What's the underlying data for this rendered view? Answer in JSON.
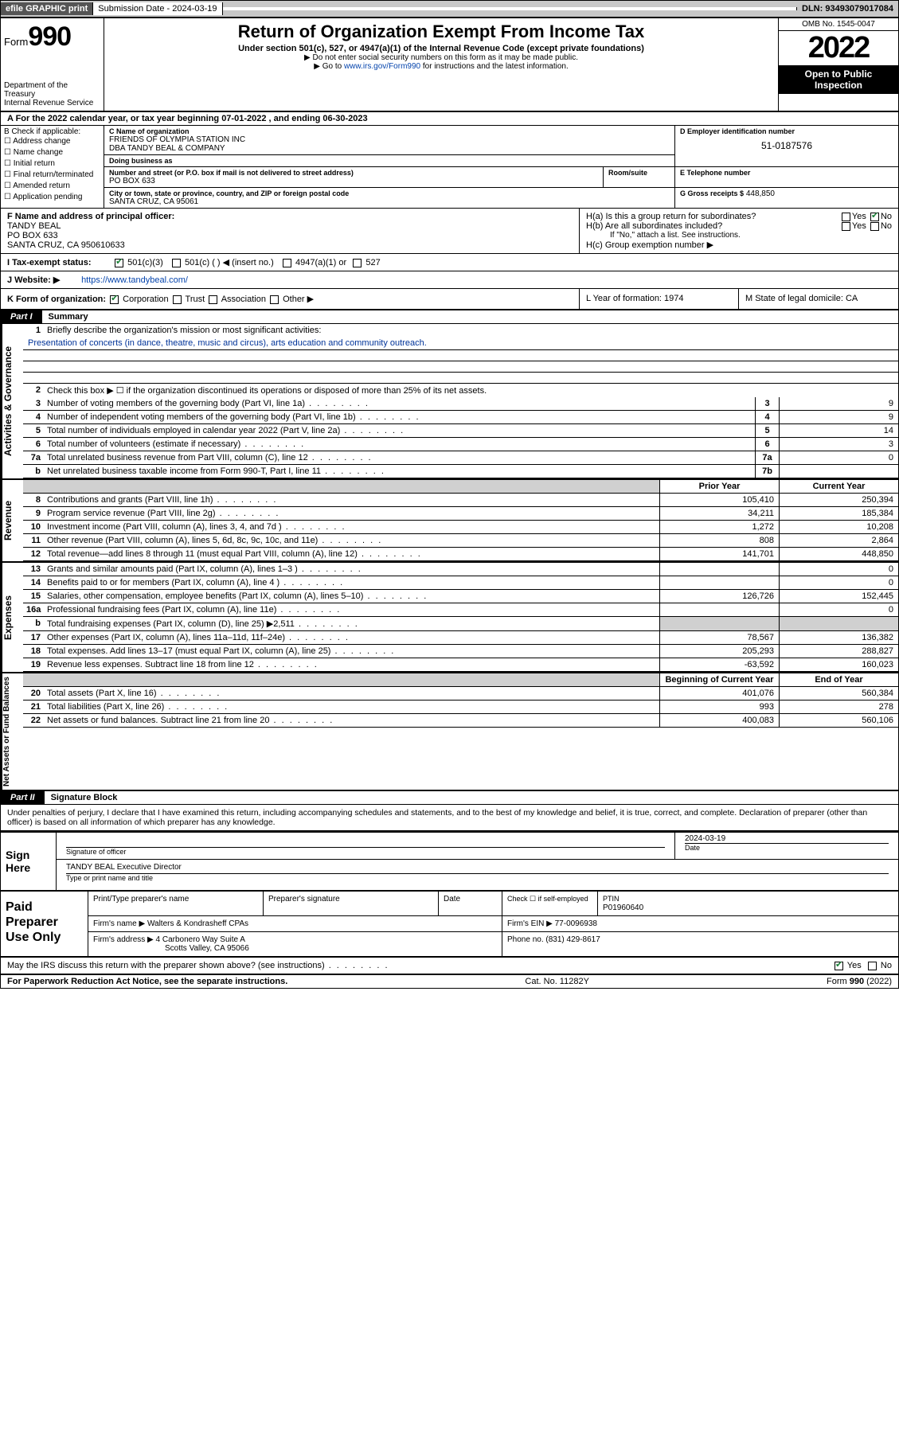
{
  "colors": {
    "link": "#0645ad",
    "check": "#1a7f37",
    "grey": "#d0d0d0",
    "black": "#000000",
    "white": "#ffffff"
  },
  "topbar": {
    "efile": "efile GRAPHIC print",
    "subdate_label": "Submission Date - 2024-03-19",
    "dln": "DLN: 93493079017084"
  },
  "header": {
    "form": "Form",
    "formno": "990",
    "dept": "Department of the Treasury\nInternal Revenue Service",
    "title": "Return of Organization Exempt From Income Tax",
    "sub1": "Under section 501(c), 527, or 4947(a)(1) of the Internal Revenue Code (except private foundations)",
    "sub2a": "▶ Do not enter social security numbers on this form as it may be made public.",
    "sub2b_pre": "▶ Go to ",
    "sub2b_link": "www.irs.gov/Form990",
    "sub2b_post": " for instructions and the latest information.",
    "omb": "OMB No. 1545-0047",
    "year": "2022",
    "open": "Open to Public Inspection"
  },
  "rowA": {
    "text": "A For the 2022 calendar year, or tax year beginning 07-01-2022    , and ending 06-30-2023"
  },
  "B": {
    "label": "B Check if applicable:",
    "opts": [
      "Address change",
      "Name change",
      "Initial return",
      "Final return/terminated",
      "Amended return",
      "Application pending"
    ]
  },
  "C": {
    "name_label": "C Name of organization",
    "name": "FRIENDS OF OLYMPIA STATION INC",
    "dba": "DBA TANDY BEAL & COMPANY",
    "dba_label": "Doing business as",
    "addr_label": "Number and street (or P.O. box if mail is not delivered to street address)",
    "room_label": "Room/suite",
    "addr": "PO BOX 633",
    "city_label": "City or town, state or province, country, and ZIP or foreign postal code",
    "city": "SANTA CRUZ, CA  95061"
  },
  "D": {
    "label": "D Employer identification number",
    "value": "51-0187576"
  },
  "E": {
    "label": "E Telephone number",
    "value": ""
  },
  "G": {
    "label": "G Gross receipts $",
    "value": "448,850"
  },
  "F": {
    "label": "F Name and address of principal officer:",
    "name": "TANDY BEAL",
    "addr": "PO BOX 633",
    "city": "SANTA CRUZ, CA  950610633"
  },
  "H": {
    "a": "H(a)  Is this a group return for subordinates?",
    "b": "H(b)  Are all subordinates included?",
    "b_note": "If \"No,\" attach a list. See instructions.",
    "c": "H(c)  Group exemption number ▶",
    "a_yes": false,
    "a_no": true
  },
  "I": {
    "label": "I     Tax-exempt status:",
    "c501c3": true,
    "opts": "501(c)(3)     501(c) (  ) ◀ (insert no.)      4947(a)(1) or     527"
  },
  "J": {
    "label": "J    Website: ▶",
    "value": "https://www.tandybeal.com/"
  },
  "K": {
    "label": "K Form of organization:",
    "corp": true,
    "text": "Corporation     Trust     Association     Other ▶"
  },
  "L": {
    "label": "L Year of formation: 1974"
  },
  "M": {
    "label": "M State of legal domicile: CA"
  },
  "part1": {
    "tag": "Part I",
    "title": "Summary"
  },
  "summary": {
    "sideA": "Activities & Governance",
    "sideR": "Revenue",
    "sideE": "Expenses",
    "sideN": "Net Assets or Fund Balances",
    "line1": "Briefly describe the organization's mission or most significant activities:",
    "mission": "Presentation of concerts (in dance, theatre, music and circus), arts education and community outreach.",
    "line2": "Check this box ▶ ☐  if the organization discontinued its operations or disposed of more than 25% of its net assets.",
    "rows_ag": [
      {
        "n": "3",
        "t": "Number of voting members of the governing body (Part VI, line 1a)",
        "b": "3",
        "v": "9"
      },
      {
        "n": "4",
        "t": "Number of independent voting members of the governing body (Part VI, line 1b)",
        "b": "4",
        "v": "9"
      },
      {
        "n": "5",
        "t": "Total number of individuals employed in calendar year 2022 (Part V, line 2a)",
        "b": "5",
        "v": "14"
      },
      {
        "n": "6",
        "t": "Total number of volunteers (estimate if necessary)",
        "b": "6",
        "v": "3"
      },
      {
        "n": "7a",
        "t": "Total unrelated business revenue from Part VIII, column (C), line 12",
        "b": "7a",
        "v": "0"
      },
      {
        "n": "b",
        "t": "Net unrelated business taxable income from Form 990-T, Part I, line 11",
        "b": "7b",
        "v": ""
      }
    ],
    "col_prior": "Prior Year",
    "col_curr": "Current Year",
    "col_beg": "Beginning of Current Year",
    "col_end": "End of Year",
    "rows_rev": [
      {
        "n": "8",
        "t": "Contributions and grants (Part VIII, line 1h)",
        "p": "105,410",
        "c": "250,394"
      },
      {
        "n": "9",
        "t": "Program service revenue (Part VIII, line 2g)",
        "p": "34,211",
        "c": "185,384"
      },
      {
        "n": "10",
        "t": "Investment income (Part VIII, column (A), lines 3, 4, and 7d )",
        "p": "1,272",
        "c": "10,208"
      },
      {
        "n": "11",
        "t": "Other revenue (Part VIII, column (A), lines 5, 6d, 8c, 9c, 10c, and 11e)",
        "p": "808",
        "c": "2,864"
      },
      {
        "n": "12",
        "t": "Total revenue—add lines 8 through 11 (must equal Part VIII, column (A), line 12)",
        "p": "141,701",
        "c": "448,850"
      }
    ],
    "rows_exp": [
      {
        "n": "13",
        "t": "Grants and similar amounts paid (Part IX, column (A), lines 1–3 )",
        "p": "",
        "c": "0"
      },
      {
        "n": "14",
        "t": "Benefits paid to or for members (Part IX, column (A), line 4 )",
        "p": "",
        "c": "0"
      },
      {
        "n": "15",
        "t": "Salaries, other compensation, employee benefits (Part IX, column (A), lines 5–10)",
        "p": "126,726",
        "c": "152,445"
      },
      {
        "n": "16a",
        "t": "Professional fundraising fees (Part IX, column (A), line 11e)",
        "p": "",
        "c": "0"
      },
      {
        "n": "b",
        "t": "Total fundraising expenses (Part IX, column (D), line 25) ▶2,511",
        "p": "__grey__",
        "c": "__grey__"
      },
      {
        "n": "17",
        "t": "Other expenses (Part IX, column (A), lines 11a–11d, 11f–24e)",
        "p": "78,567",
        "c": "136,382"
      },
      {
        "n": "18",
        "t": "Total expenses. Add lines 13–17 (must equal Part IX, column (A), line 25)",
        "p": "205,293",
        "c": "288,827"
      },
      {
        "n": "19",
        "t": "Revenue less expenses. Subtract line 18 from line 12",
        "p": "-63,592",
        "c": "160,023"
      }
    ],
    "rows_net": [
      {
        "n": "20",
        "t": "Total assets (Part X, line 16)",
        "p": "401,076",
        "c": "560,384"
      },
      {
        "n": "21",
        "t": "Total liabilities (Part X, line 26)",
        "p": "993",
        "c": "278"
      },
      {
        "n": "22",
        "t": "Net assets or fund balances. Subtract line 21 from line 20",
        "p": "400,083",
        "c": "560,106"
      }
    ]
  },
  "part2": {
    "tag": "Part II",
    "title": "Signature Block"
  },
  "decl": "Under penalties of perjury, I declare that I have examined this return, including accompanying schedules and statements, and to the best of my knowledge and belief, it is true, correct, and complete. Declaration of preparer (other than officer) is based on all information of which preparer has any knowledge.",
  "sign": {
    "label": "Sign Here",
    "sig_of_officer": "Signature of officer",
    "date_label": "Date",
    "date": "2024-03-19",
    "name": "TANDY BEAL Executive Director",
    "name_label": "Type or print name and title"
  },
  "preparer": {
    "label": "Paid Preparer Use Only",
    "h1": "Print/Type preparer's name",
    "h2": "Preparer's signature",
    "h3": "Date",
    "h4": "Check ☐ if self-employed",
    "h5_label": "PTIN",
    "h5": "P01960640",
    "firm_label": "Firm's name    ▶",
    "firm": "Walters & Kondrasheff CPAs",
    "ein_label": "Firm's EIN ▶",
    "ein": "77-0096938",
    "addr_label": "Firm's address ▶",
    "addr1": "4 Carbonero Way Suite A",
    "addr2": "Scotts Valley, CA  95066",
    "phone_label": "Phone no.",
    "phone": "(831) 429-8617"
  },
  "discuss": {
    "text": "May the IRS discuss this return with the preparer shown above? (see instructions)",
    "yes": true
  },
  "footer": {
    "left": "For Paperwork Reduction Act Notice, see the separate instructions.",
    "mid": "Cat. No. 11282Y",
    "right": "Form 990 (2022)"
  }
}
